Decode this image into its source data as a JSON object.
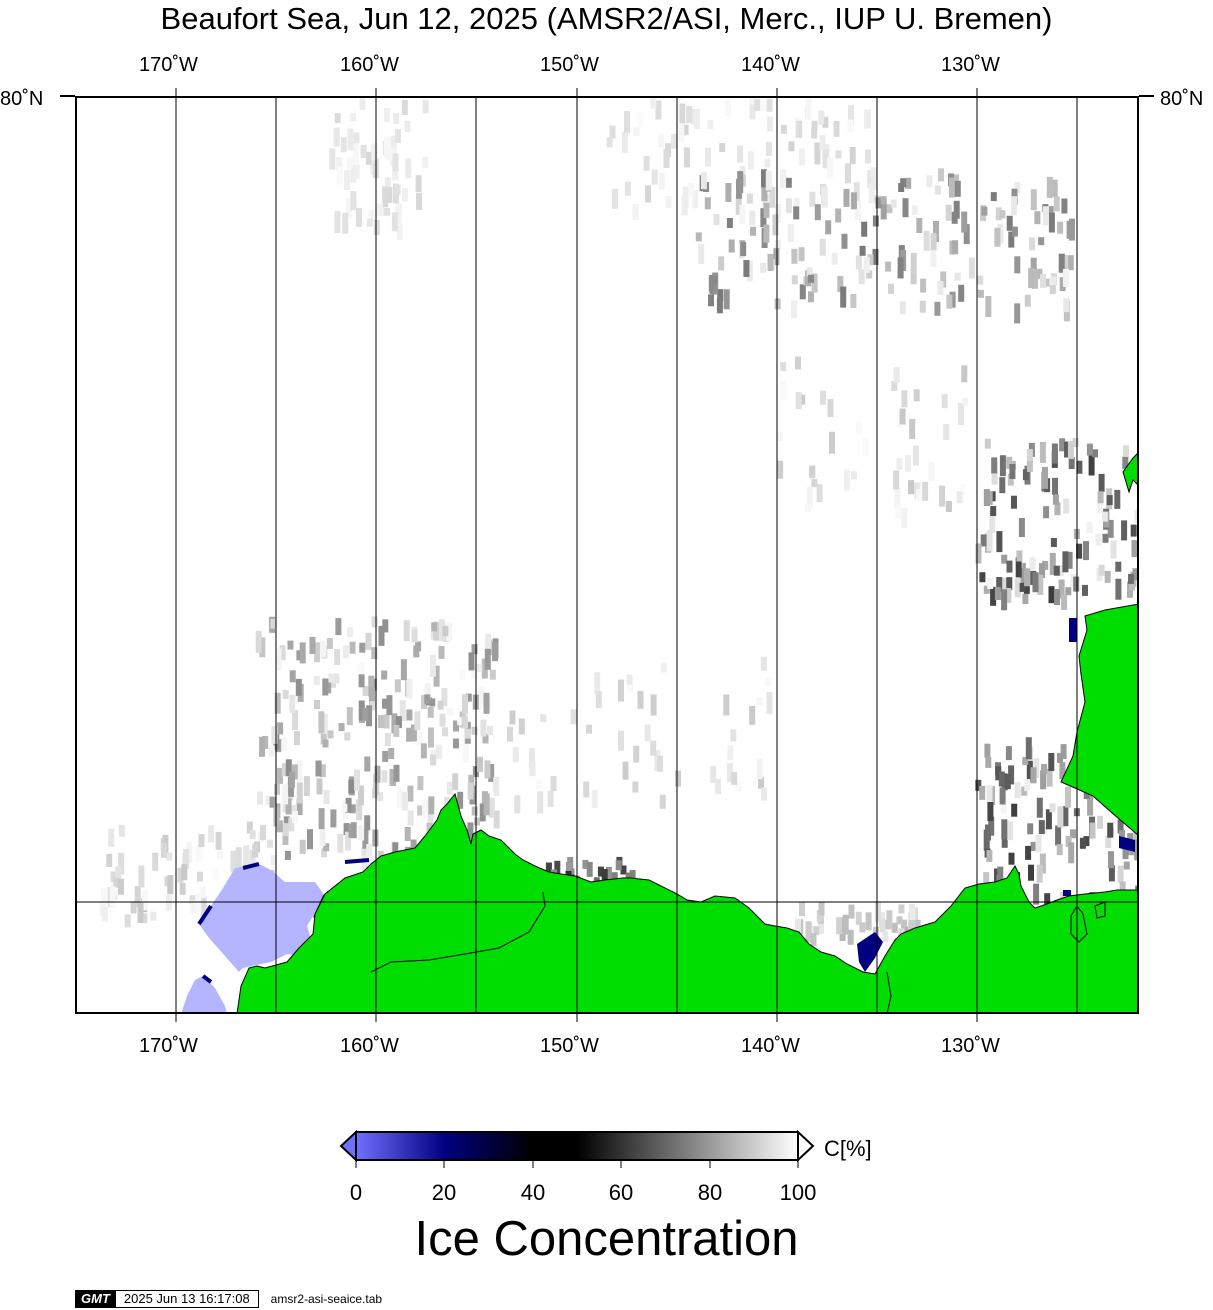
{
  "title": "Beaufort Sea, Jun 12, 2025 (AMSR2/ASI, Merc., IUP U. Bremen)",
  "map": {
    "lon_labels_top": [
      "170˚W",
      "160˚W",
      "150˚W",
      "140˚W",
      "130˚W"
    ],
    "lon_labels_bottom": [
      "170˚W",
      "160˚W",
      "150˚W",
      "140˚W",
      "130˚W"
    ],
    "lat_label_left": "80˚N",
    "lat_label_right": "80˚N",
    "lon_range": [
      -175,
      -122
    ],
    "land_color": "#00dd00",
    "ocean_color": "#ffffff",
    "missing_data_color": "#b4b4ff"
  },
  "colorbar": {
    "title": "Ice Concentration",
    "unit": "C[%]",
    "ticks": [
      "0",
      "20",
      "40",
      "60",
      "80",
      "100"
    ],
    "stops": [
      {
        "value": 0,
        "color": "#7070ff"
      },
      {
        "value": 20,
        "color": "#000080"
      },
      {
        "value": 50,
        "color": "#000000"
      },
      {
        "value": 100,
        "color": "#ffffff"
      }
    ]
  },
  "footer": {
    "logo": "GMT",
    "timestamp": "2025 Jun 13 16:17:08",
    "script": "amsr2-asi-seaice.tab"
  }
}
